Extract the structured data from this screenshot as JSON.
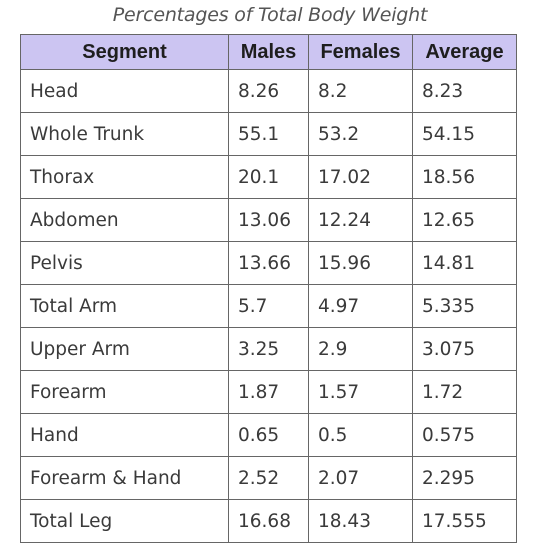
{
  "title": "Percentages of Total Body Weight",
  "columns": [
    "Segment",
    "Males",
    "Females",
    "Average"
  ],
  "rows": [
    [
      "Head",
      "8.26",
      "8.2",
      "8.23"
    ],
    [
      "Whole Trunk",
      "55.1",
      "53.2",
      "54.15"
    ],
    [
      "Thorax",
      "20.1",
      "17.02",
      "18.56"
    ],
    [
      "Abdomen",
      "13.06",
      "12.24",
      "12.65"
    ],
    [
      "Pelvis",
      "13.66",
      "15.96",
      "14.81"
    ],
    [
      "Total Arm",
      "5.7",
      "4.97",
      "5.335"
    ],
    [
      "Upper Arm",
      "3.25",
      "2.9",
      "3.075"
    ],
    [
      "Forearm",
      "1.87",
      "1.57",
      "1.72"
    ],
    [
      "Hand",
      "0.65",
      "0.5",
      "0.575"
    ],
    [
      "Forearm & Hand",
      "2.52",
      "2.07",
      "2.295"
    ],
    [
      "Total Leg",
      "16.68",
      "18.43",
      "17.555"
    ]
  ],
  "colors": {
    "header_background": "#ccc5f2",
    "border": "#666666"
  }
}
